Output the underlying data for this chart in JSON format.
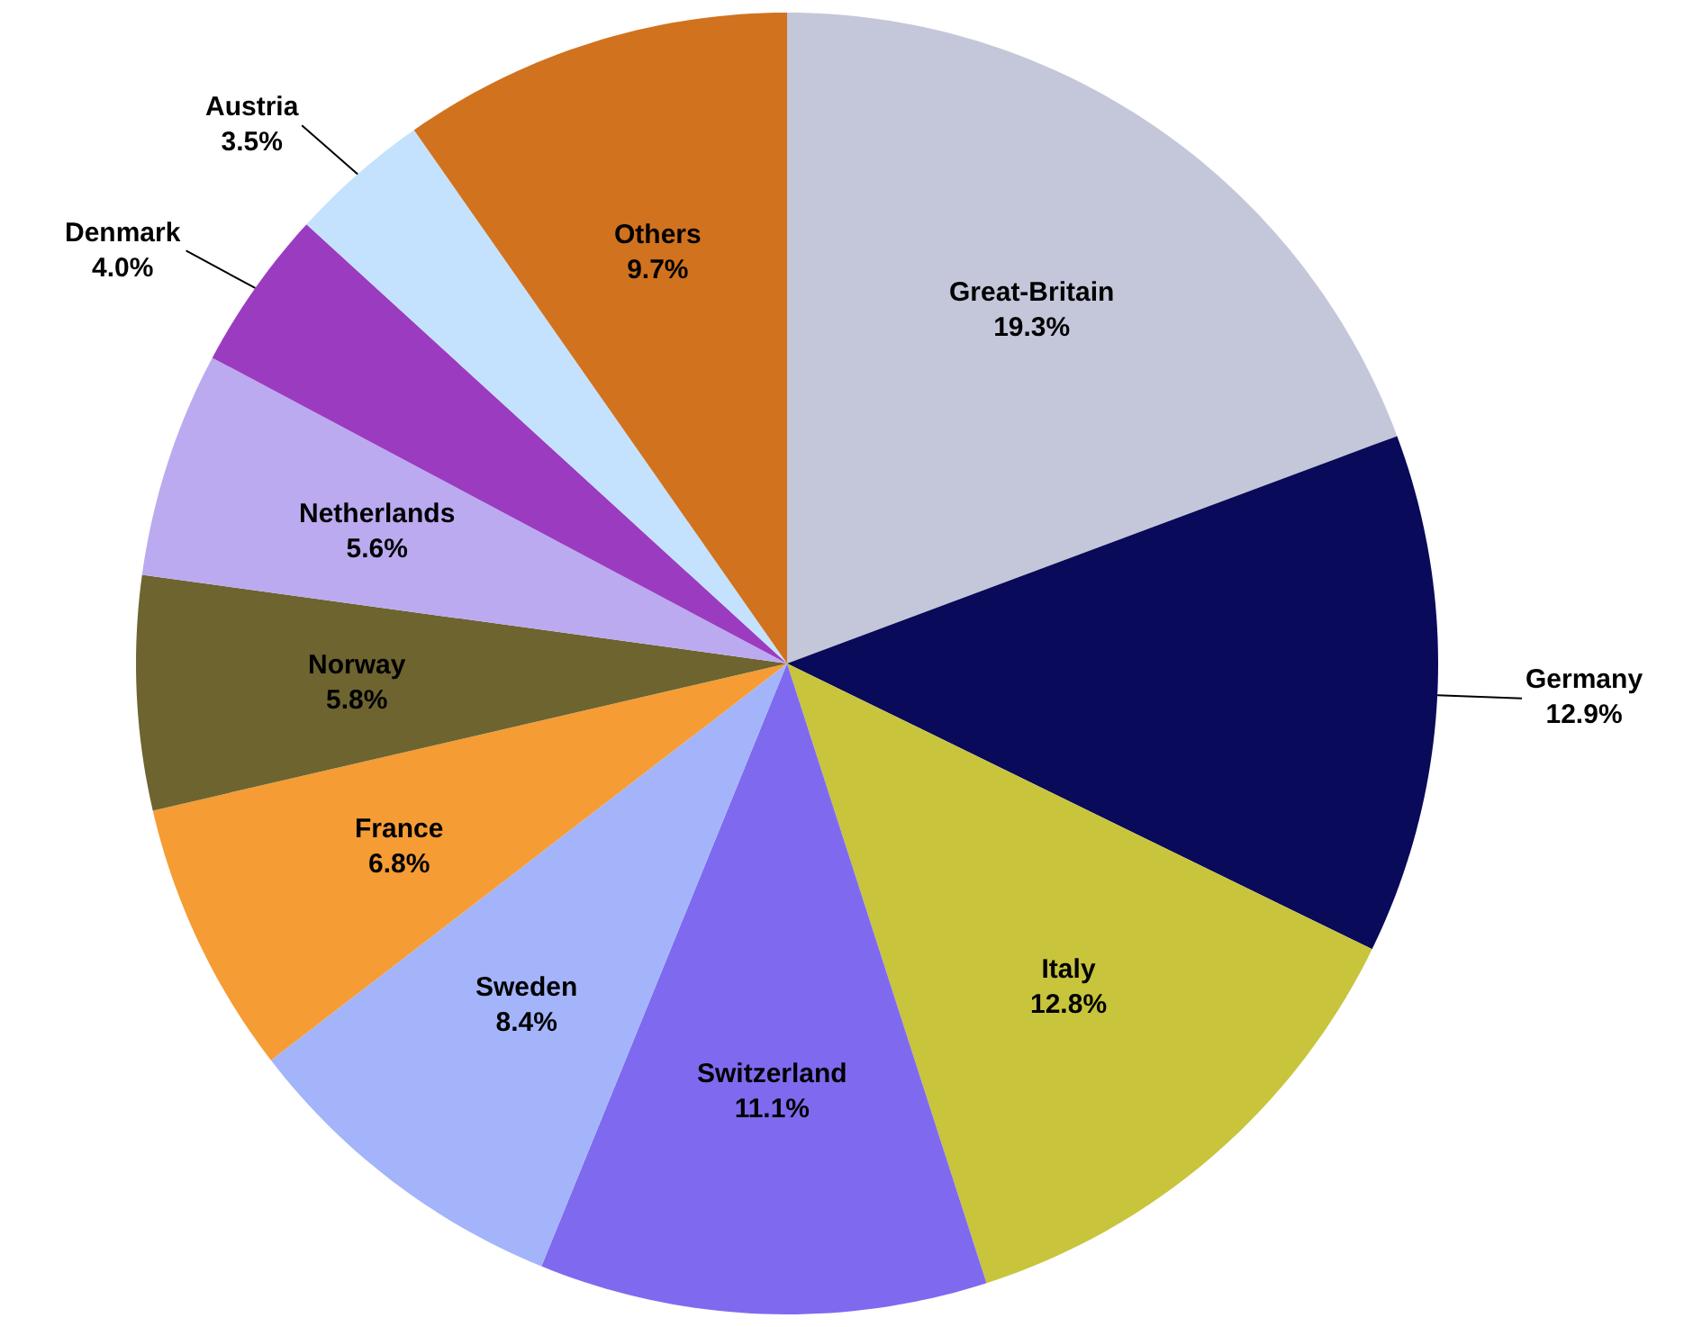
{
  "chart_data": {
    "type": "pie",
    "categories": [
      "Great-Britain",
      "Germany",
      "Italy",
      "Switzerland",
      "Sweden",
      "France",
      "Norway",
      "Netherlands",
      "Denmark",
      "Austria",
      "Others"
    ],
    "values": [
      19.3,
      12.9,
      12.8,
      11.1,
      8.4,
      6.8,
      5.8,
      5.6,
      4.0,
      3.5,
      9.7
    ],
    "value_labels": [
      "19.3%",
      "12.9%",
      "12.8%",
      "11.1%",
      "8.4%",
      "6.8%",
      "5.8%",
      "5.6%",
      "4.0%",
      "3.5%",
      "9.7%"
    ],
    "colors": [
      "#c4c7d9",
      "#0a0a5a",
      "#c8c43c",
      "#7f6aef",
      "#a3b4fb",
      "#f59c35",
      "#6d6430",
      "#bbaaf0",
      "#9b3cc0",
      "#c4e2fd",
      "#d1721f"
    ],
    "legend": false
  }
}
